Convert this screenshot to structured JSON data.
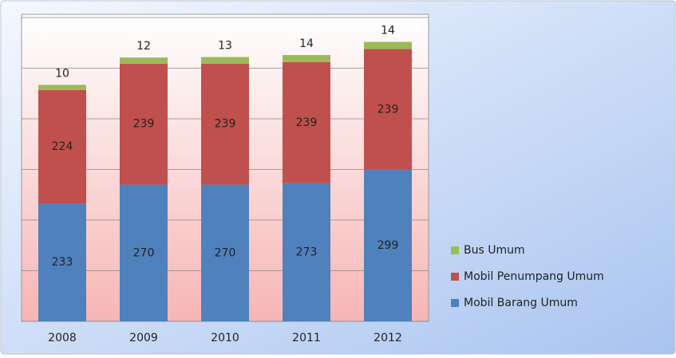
{
  "chart_data": {
    "type": "stacked_bar",
    "categories": [
      "2008",
      "2009",
      "2010",
      "2011",
      "2012"
    ],
    "series": [
      {
        "name": "Mobil Barang Umum",
        "color": "#4f81bd",
        "values": [
          233,
          270,
          270,
          273,
          299
        ]
      },
      {
        "name": "Mobil Penumpang Umum",
        "color": "#c0504d",
        "values": [
          224,
          239,
          239,
          239,
          239
        ]
      },
      {
        "name": "Bus Umum",
        "color": "#9bbb59",
        "values": [
          10,
          12,
          13,
          14,
          14
        ]
      }
    ],
    "ylim": [
      0,
      600
    ],
    "yticks": [
      0,
      100,
      200,
      300,
      400,
      500,
      600
    ],
    "grid": true,
    "legend": "right"
  }
}
